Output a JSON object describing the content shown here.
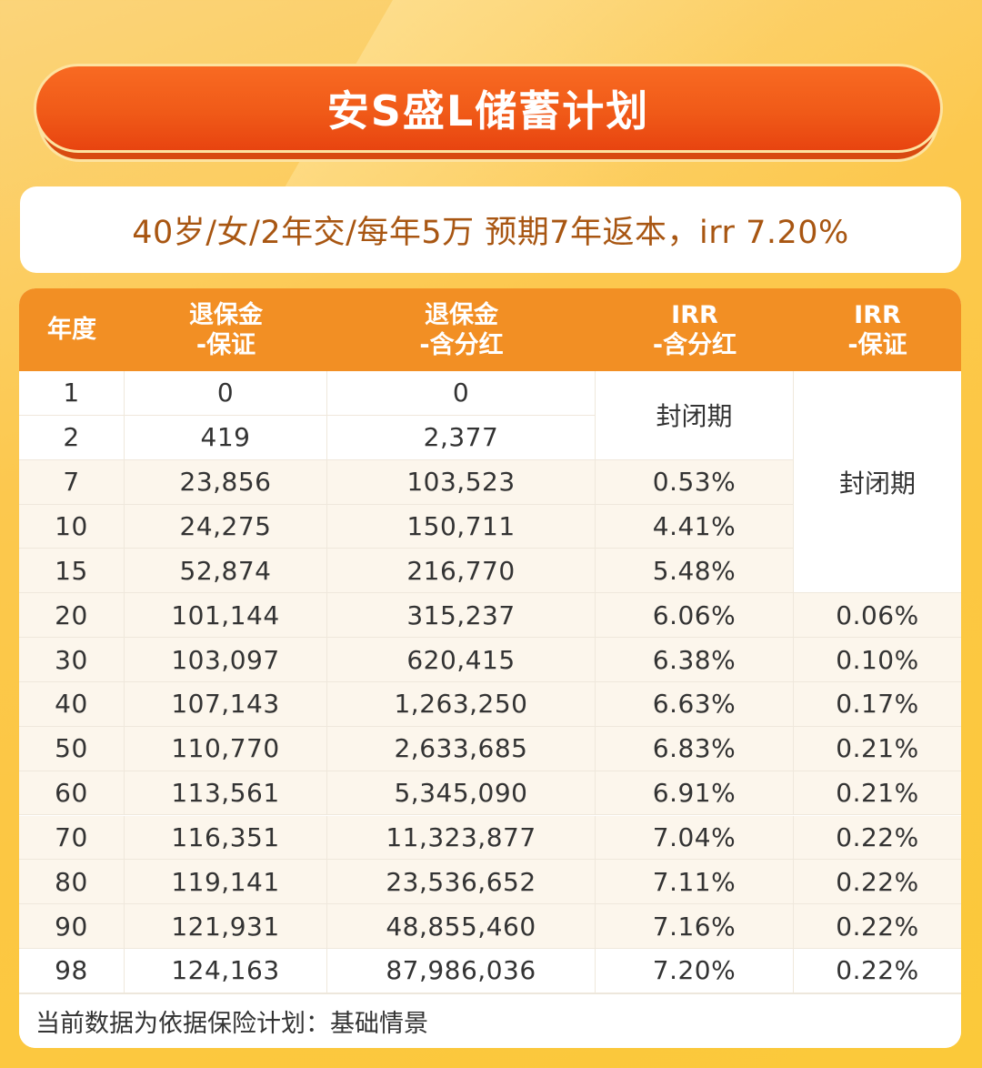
{
  "title": "安S盛L储蓄计划",
  "subtitle": "40岁/女/2年交/每年5万  预期7年返本，irr 7.20%",
  "colors": {
    "banner": "#f05a18",
    "header": "#f28f24",
    "subtitle_text": "#a85612",
    "row_cream": "#fcf6ec",
    "background": "#fcc743"
  },
  "table": {
    "headers": [
      {
        "line1": "年度",
        "line2": ""
      },
      {
        "line1": "退保金",
        "line2": "-保证"
      },
      {
        "line1": "退保金",
        "line2": "-含分红"
      },
      {
        "line1": "IRR",
        "line2": "-含分红"
      },
      {
        "line1": "IRR",
        "line2": "-保证"
      }
    ],
    "merged_labels": {
      "irr_dividend_closed": "封闭期",
      "irr_guaranteed_closed": "封闭期"
    },
    "rows": [
      {
        "year": "1",
        "surrender_guaranteed": "0",
        "surrender_dividend": "0",
        "irr_dividend": "",
        "irr_guaranteed": ""
      },
      {
        "year": "2",
        "surrender_guaranteed": "419",
        "surrender_dividend": "2,377",
        "irr_dividend": "",
        "irr_guaranteed": ""
      },
      {
        "year": "7",
        "surrender_guaranteed": "23,856",
        "surrender_dividend": "103,523",
        "irr_dividend": "0.53%",
        "irr_guaranteed": ""
      },
      {
        "year": "10",
        "surrender_guaranteed": "24,275",
        "surrender_dividend": "150,711",
        "irr_dividend": "4.41%",
        "irr_guaranteed": ""
      },
      {
        "year": "15",
        "surrender_guaranteed": "52,874",
        "surrender_dividend": "216,770",
        "irr_dividend": "5.48%",
        "irr_guaranteed": ""
      },
      {
        "year": "20",
        "surrender_guaranteed": "101,144",
        "surrender_dividend": "315,237",
        "irr_dividend": "6.06%",
        "irr_guaranteed": "0.06%"
      },
      {
        "year": "30",
        "surrender_guaranteed": "103,097",
        "surrender_dividend": "620,415",
        "irr_dividend": "6.38%",
        "irr_guaranteed": "0.10%"
      },
      {
        "year": "40",
        "surrender_guaranteed": "107,143",
        "surrender_dividend": "1,263,250",
        "irr_dividend": "6.63%",
        "irr_guaranteed": "0.17%"
      },
      {
        "year": "50",
        "surrender_guaranteed": "110,770",
        "surrender_dividend": "2,633,685",
        "irr_dividend": "6.83%",
        "irr_guaranteed": "0.21%"
      },
      {
        "year": "60",
        "surrender_guaranteed": "113,561",
        "surrender_dividend": "5,345,090",
        "irr_dividend": "6.91%",
        "irr_guaranteed": "0.21%"
      },
      {
        "year": "70",
        "surrender_guaranteed": "116,351",
        "surrender_dividend": "11,323,877",
        "irr_dividend": "7.04%",
        "irr_guaranteed": "0.22%"
      },
      {
        "year": "80",
        "surrender_guaranteed": "119,141",
        "surrender_dividend": "23,536,652",
        "irr_dividend": "7.11%",
        "irr_guaranteed": "0.22%"
      },
      {
        "year": "90",
        "surrender_guaranteed": "121,931",
        "surrender_dividend": "48,855,460",
        "irr_dividend": "7.16%",
        "irr_guaranteed": "0.22%"
      },
      {
        "year": "98",
        "surrender_guaranteed": "124,163",
        "surrender_dividend": "87,986,036",
        "irr_dividend": "7.20%",
        "irr_guaranteed": "0.22%"
      }
    ]
  },
  "footer_note": "当前数据为依据保险计划：基础情景"
}
